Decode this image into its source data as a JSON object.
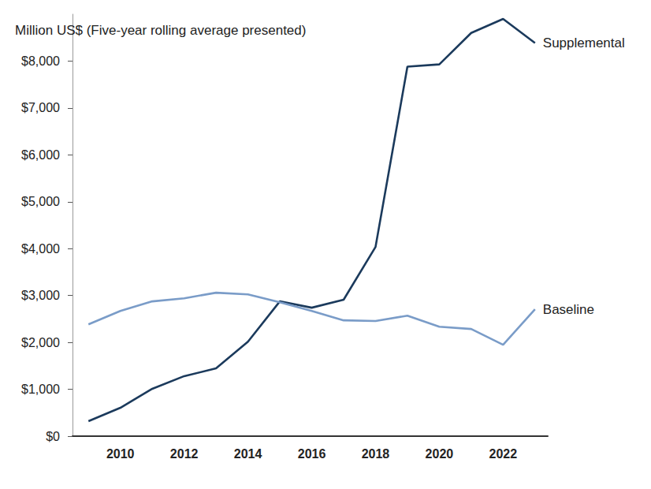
{
  "chart_data": {
    "type": "line",
    "title": "Million US$ (Five-year rolling average presented)",
    "x": [
      2009,
      2010,
      2011,
      2012,
      2013,
      2014,
      2015,
      2016,
      2017,
      2018,
      2019,
      2020,
      2021,
      2022,
      2023
    ],
    "series": [
      {
        "name": "Supplemental",
        "color": "#1b3a5c",
        "values": [
          320,
          605,
          1010,
          1280,
          1445,
          2015,
          2875,
          2740,
          2910,
          4035,
          7880,
          7930,
          8600,
          8900,
          8385
        ]
      },
      {
        "name": "Baseline",
        "color": "#7a9cc8",
        "values": [
          2385,
          2670,
          2875,
          2940,
          3060,
          3025,
          2855,
          2670,
          2470,
          2455,
          2570,
          2335,
          2285,
          1950,
          2705
        ]
      }
    ],
    "xlim": [
      2008.5,
      2023.4
    ],
    "xticks": [
      2010,
      2012,
      2014,
      2016,
      2018,
      2020,
      2022
    ],
    "ylim": [
      0,
      9000
    ],
    "yticks": [
      {
        "value": 0,
        "label": "$0"
      },
      {
        "value": 1000,
        "label": "$1,000"
      },
      {
        "value": 2000,
        "label": "$2,000"
      },
      {
        "value": 3000,
        "label": "$3,000"
      },
      {
        "value": 4000,
        "label": "$4,000"
      },
      {
        "value": 5000,
        "label": "$5,000"
      },
      {
        "value": 6000,
        "label": "$6,000"
      },
      {
        "value": 7000,
        "label": "$7,000"
      },
      {
        "value": 8000,
        "label": "$8,000"
      }
    ],
    "grid": false
  }
}
